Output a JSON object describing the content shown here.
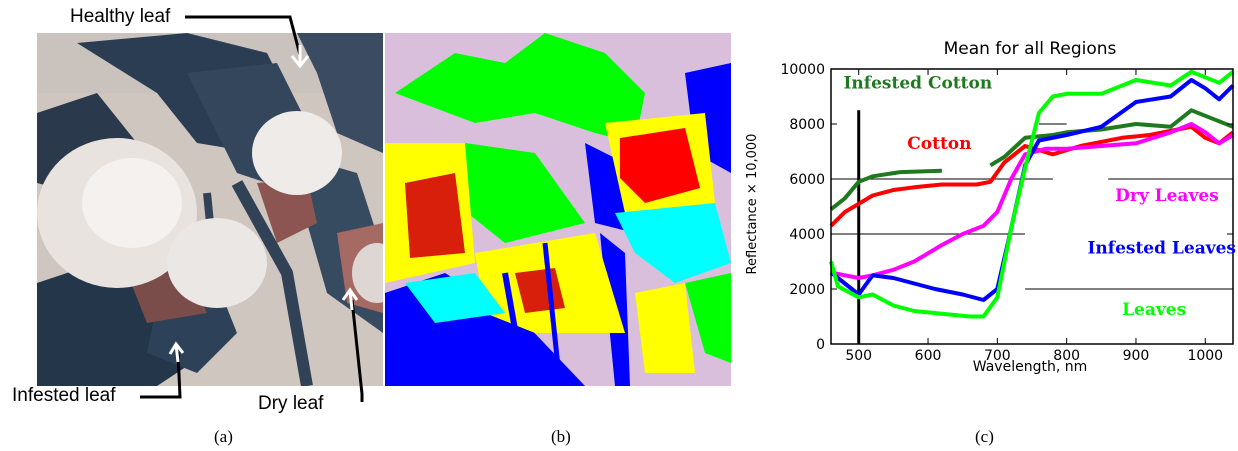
{
  "figure": {
    "panel_a": {
      "sub_label": "(a)",
      "callouts": {
        "healthy": "Healthy leaf",
        "infested": "Infested leaf",
        "dry": "Dry leaf"
      }
    },
    "panel_b": {
      "sub_label": "(b)"
    },
    "panel_c": {
      "sub_label": "(c)"
    }
  },
  "colors": {
    "class_green": "#00ff00",
    "class_blue": "#0000ff",
    "class_yellow": "#ffff00",
    "class_cyan": "#00ffff",
    "class_red": "#ff0000",
    "class_lavender": "#d9bfdc",
    "dark_green": "#1f7a1f",
    "magenta": "#ff00ff"
  },
  "chart_data": {
    "type": "line",
    "title": "Mean for all Regions",
    "xlabel": "Wavelength, nm",
    "ylabel": "Reflectance × 10,000",
    "xlim": [
      460,
      1040
    ],
    "ylim": [
      0,
      10000
    ],
    "x_ticks": [
      500,
      600,
      700,
      800,
      900,
      1000
    ],
    "y_ticks": [
      0,
      2000,
      4000,
      6000,
      8000,
      10000
    ],
    "series": [
      {
        "name": "Infested Cotton",
        "color": "#1f7a1f",
        "segments": [
          [
            [
              460,
              4900
            ],
            [
              480,
              5300
            ],
            [
              500,
              5900
            ],
            [
              520,
              6100
            ],
            [
              560,
              6250
            ],
            [
              620,
              6300
            ]
          ],
          [
            [
              690,
              6500
            ],
            [
              710,
              6800
            ],
            [
              740,
              7500
            ],
            [
              780,
              7600
            ],
            [
              800,
              7700
            ],
            [
              850,
              7800
            ],
            [
              900,
              8000
            ],
            [
              950,
              7900
            ],
            [
              980,
              8500
            ],
            [
              1000,
              8300
            ],
            [
              1040,
              7900
            ]
          ]
        ]
      },
      {
        "name": "Cotton",
        "color": "#ff0000",
        "segments": [
          [
            [
              460,
              4300
            ],
            [
              480,
              4800
            ],
            [
              500,
              5100
            ],
            [
              520,
              5400
            ],
            [
              550,
              5600
            ],
            [
              580,
              5700
            ],
            [
              620,
              5800
            ],
            [
              670,
              5800
            ],
            [
              690,
              5900
            ],
            [
              710,
              6600
            ],
            [
              740,
              7200
            ],
            [
              780,
              6900
            ],
            [
              820,
              7200
            ],
            [
              880,
              7500
            ],
            [
              920,
              7600
            ],
            [
              960,
              7800
            ],
            [
              980,
              7900
            ],
            [
              1000,
              7500
            ],
            [
              1020,
              7300
            ],
            [
              1040,
              7700
            ]
          ]
        ]
      },
      {
        "name": "Dry Leaves",
        "color": "#ff00ff",
        "segments": [
          [
            [
              460,
              2600
            ],
            [
              480,
              2500
            ],
            [
              500,
              2400
            ],
            [
              520,
              2500
            ],
            [
              550,
              2700
            ],
            [
              580,
              3000
            ],
            [
              600,
              3300
            ],
            [
              620,
              3600
            ],
            [
              650,
              4000
            ],
            [
              680,
              4300
            ],
            [
              700,
              4800
            ],
            [
              720,
              6000
            ],
            [
              740,
              6900
            ],
            [
              770,
              7100
            ],
            [
              800,
              7100
            ],
            [
              850,
              7200
            ],
            [
              900,
              7300
            ],
            [
              950,
              7700
            ],
            [
              980,
              8000
            ],
            [
              1000,
              7700
            ],
            [
              1020,
              7300
            ],
            [
              1040,
              7600
            ]
          ]
        ]
      },
      {
        "name": "Infested Leaves",
        "color": "#0000ff",
        "segments": [
          [
            [
              460,
              2600
            ],
            [
              480,
              2200
            ],
            [
              500,
              1800
            ],
            [
              520,
              2500
            ],
            [
              550,
              2400
            ],
            [
              580,
              2200
            ],
            [
              610,
              2000
            ],
            [
              650,
              1800
            ],
            [
              680,
              1600
            ],
            [
              700,
              2000
            ],
            [
              720,
              4200
            ],
            [
              740,
              6500
            ],
            [
              760,
              7400
            ],
            [
              800,
              7600
            ],
            [
              850,
              7900
            ],
            [
              900,
              8800
            ],
            [
              950,
              9000
            ],
            [
              980,
              9600
            ],
            [
              1000,
              9300
            ],
            [
              1020,
              8900
            ],
            [
              1040,
              9400
            ]
          ]
        ]
      },
      {
        "name": "Leaves",
        "color": "#00ff00",
        "segments": [
          [
            [
              460,
              3000
            ],
            [
              470,
              2100
            ],
            [
              500,
              1700
            ],
            [
              520,
              1800
            ],
            [
              550,
              1400
            ],
            [
              580,
              1200
            ],
            [
              620,
              1100
            ],
            [
              660,
              1000
            ],
            [
              680,
              1000
            ],
            [
              700,
              1700
            ],
            [
              720,
              4200
            ],
            [
              740,
              6400
            ],
            [
              760,
              8400
            ],
            [
              780,
              9000
            ],
            [
              800,
              9100
            ],
            [
              850,
              9100
            ],
            [
              900,
              9600
            ],
            [
              950,
              9400
            ],
            [
              980,
              9900
            ],
            [
              1000,
              9700
            ],
            [
              1020,
              9500
            ],
            [
              1040,
              9900
            ]
          ]
        ]
      }
    ]
  }
}
